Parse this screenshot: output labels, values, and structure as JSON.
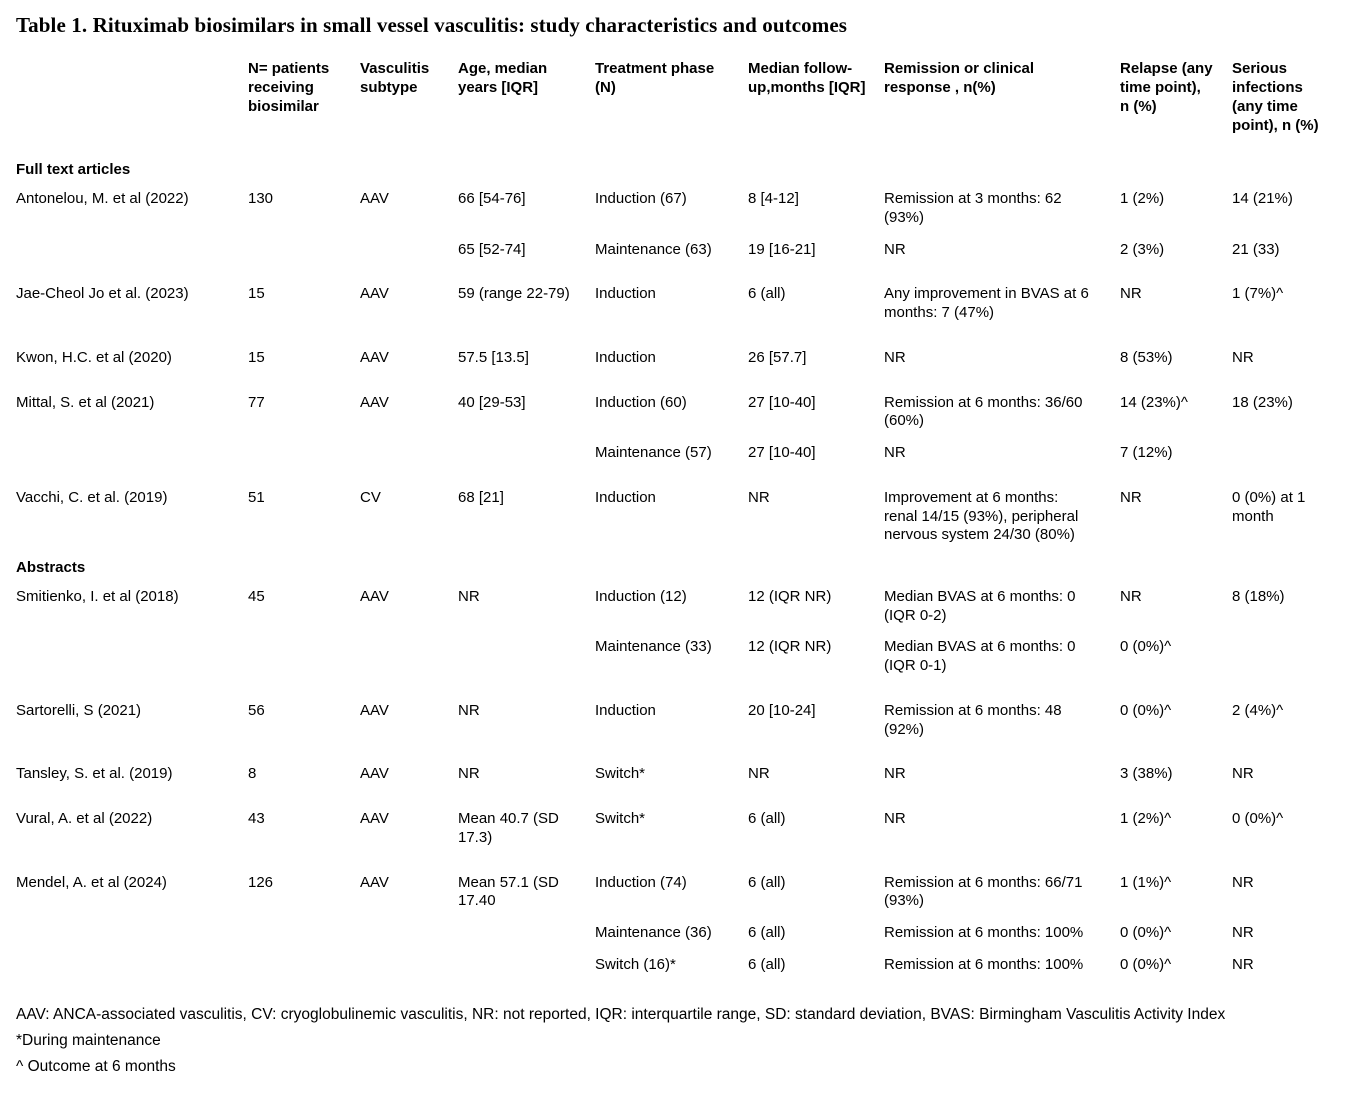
{
  "title": "Table 1. Rituximab biosimilars in small vessel vasculitis: study characteristics and outcomes",
  "table": {
    "columns": [
      "",
      "N= patients receiving biosimilar",
      "Vasculitis subtype",
      "Age, median years [IQR]",
      "Treatment phase (N)",
      "Median follow-up,months [IQR]",
      "Remission or clinical response , n(%)",
      "Relapse (any time point), n (%)",
      "Serious infections (any time point), n (%)"
    ],
    "sections": [
      {
        "label": "Full text articles",
        "rows": [
          [
            "Antonelou, M. et al (2022)",
            "130",
            "AAV",
            "66 [54-76]",
            "Induction (67)",
            "8 [4-12]",
            "Remission at 3 months: 62 (93%)",
            "1 (2%)",
            "14 (21%)"
          ],
          [
            "",
            "",
            "",
            "65 [52-74]",
            "Maintenance (63)",
            "19 [16-21]",
            "NR",
            "2 (3%)",
            "21 (33)"
          ],
          [
            "Jae-Cheol Jo et al. (2023)",
            "15",
            "AAV",
            "59 (range 22-79)",
            "Induction",
            "6 (all)",
            "Any improvement in BVAS at 6 months: 7 (47%)",
            "NR",
            "1 (7%)^"
          ],
          [
            "Kwon, H.C. et al (2020)",
            "15",
            "AAV",
            "57.5 [13.5]",
            "Induction",
            "26 [57.7]",
            "NR",
            "8 (53%)",
            "NR"
          ],
          [
            "Mittal, S. et al (2021)",
            "77",
            "AAV",
            "40 [29-53]",
            "Induction (60)",
            "27 [10-40]",
            "Remission at 6 months: 36/60 (60%)",
            "14 (23%)^",
            "18 (23%)"
          ],
          [
            "",
            "",
            "",
            "",
            "Maintenance (57)",
            "27 [10-40]",
            "NR",
            "7 (12%)",
            ""
          ],
          [
            "Vacchi, C. et al. (2019)",
            "51",
            "CV",
            "68 [21]",
            "Induction",
            "NR",
            "Improvement at 6 months: renal 14/15 (93%), peripheral nervous system 24/30 (80%)",
            "NR",
            "0 (0%) at 1 month"
          ]
        ]
      },
      {
        "label": "Abstracts",
        "rows": [
          [
            "Smitienko, I. et al (2018)",
            "45",
            "AAV",
            "NR",
            "Induction (12)",
            "12 (IQR NR)",
            "Median BVAS at 6 months: 0 (IQR 0-2)",
            "NR",
            "8 (18%)"
          ],
          [
            "",
            "",
            "",
            "",
            "Maintenance (33)",
            "12 (IQR NR)",
            "Median BVAS at 6 months: 0 (IQR 0-1)",
            "0 (0%)^",
            ""
          ],
          [
            "Sartorelli,  S (2021)",
            "56",
            "AAV",
            "NR",
            "Induction",
            "20 [10-24]",
            "Remission at 6 months: 48 (92%)",
            "0 (0%)^",
            "2 (4%)^"
          ],
          [
            "Tansley, S. et al. (2019)",
            "8",
            "AAV",
            "NR",
            "Switch*",
            "NR",
            "NR",
            "3 (38%)",
            "NR"
          ],
          [
            "Vural, A. et al (2022)",
            "43",
            "AAV",
            "Mean 40.7 (SD 17.3)",
            "Switch*",
            "6 (all)",
            "NR",
            "1 (2%)^",
            "0 (0%)^"
          ],
          [
            "Mendel, A. et al (2024)",
            "126",
            "AAV",
            "Mean 57.1 (SD 17.40",
            "Induction (74)",
            "6 (all)",
            "Remission at 6 months: 66/71 (93%)",
            "1 (1%)^",
            "NR"
          ],
          [
            "",
            "",
            "",
            "",
            "Maintenance (36)",
            "6 (all)",
            "Remission at 6 months: 100%",
            "0 (0%)^",
            "NR"
          ],
          [
            "",
            "",
            "",
            "",
            "Switch (16)*",
            "6  (all)",
            "Remission at 6 months: 100%",
            "0 (0%)^",
            "NR"
          ]
        ]
      }
    ]
  },
  "footnotes": [
    "AAV: ANCA-associated vasculitis, CV: cryoglobulinemic vasculitis, NR: not reported, IQR: interquartile range, SD: standard deviation, BVAS: Birmingham Vasculitis Activity Index",
    "*During maintenance",
    "^ Outcome at 6 months"
  ]
}
